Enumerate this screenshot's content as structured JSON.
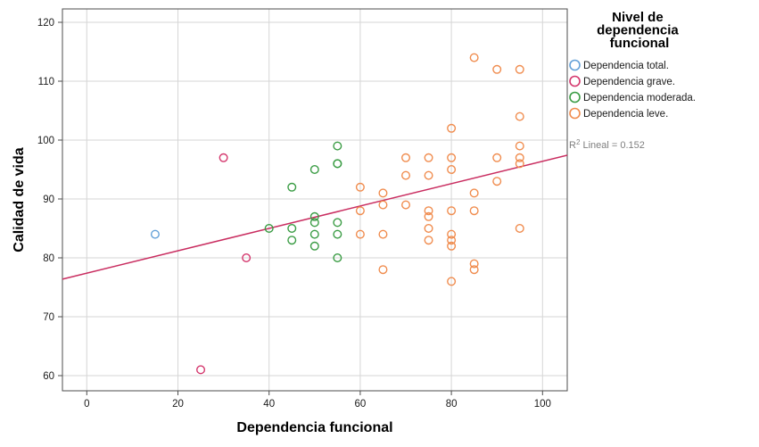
{
  "chart_data": {
    "type": "scatter",
    "xlabel": "Dependencia funcional",
    "ylabel": "Calidad de vida",
    "x_ticks": [
      0,
      20,
      40,
      60,
      80,
      100
    ],
    "y_ticks": [
      60,
      70,
      80,
      90,
      100,
      110,
      120
    ],
    "xlim": [
      -5.34,
      105.42
    ],
    "ylim": [
      57.4,
      122.3
    ],
    "grid": true,
    "legend_position": "right",
    "legend_title": "Nivel de dependencia funcional",
    "legend_title_lines": [
      "Nivel de",
      "dependencia",
      "funcional"
    ],
    "series": [
      {
        "label": "Dependencia total.",
        "color": "#64a1d8",
        "points": [
          [
            15,
            84
          ]
        ]
      },
      {
        "label": "Dependencia grave.",
        "color": "#d4376d",
        "points": [
          [
            25,
            61
          ],
          [
            30,
            97
          ],
          [
            35,
            80
          ]
        ]
      },
      {
        "label": "Dependencia moderada.",
        "color": "#3a9c44",
        "points": [
          [
            40,
            85
          ],
          [
            45,
            83
          ],
          [
            45,
            85
          ],
          [
            45,
            92
          ],
          [
            50,
            82
          ],
          [
            50,
            84
          ],
          [
            50,
            86
          ],
          [
            50,
            87
          ],
          [
            50,
            95
          ],
          [
            55,
            80
          ],
          [
            55,
            84
          ],
          [
            55,
            86
          ],
          [
            55,
            96
          ],
          [
            55,
            96
          ],
          [
            55,
            99
          ]
        ]
      },
      {
        "label": "Dependencia leve.",
        "color": "#f08c4e",
        "points": [
          [
            60,
            84
          ],
          [
            60,
            88
          ],
          [
            60,
            92
          ],
          [
            65,
            78
          ],
          [
            65,
            84
          ],
          [
            65,
            89
          ],
          [
            65,
            91
          ],
          [
            70,
            89
          ],
          [
            70,
            94
          ],
          [
            70,
            97
          ],
          [
            75,
            83
          ],
          [
            75,
            85
          ],
          [
            75,
            87
          ],
          [
            75,
            88
          ],
          [
            75,
            94
          ],
          [
            75,
            97
          ],
          [
            80,
            76
          ],
          [
            80,
            82
          ],
          [
            80,
            83
          ],
          [
            80,
            84
          ],
          [
            80,
            88
          ],
          [
            80,
            95
          ],
          [
            80,
            97
          ],
          [
            80,
            102
          ],
          [
            85,
            78
          ],
          [
            85,
            79
          ],
          [
            85,
            88
          ],
          [
            85,
            91
          ],
          [
            85,
            114
          ],
          [
            90,
            93
          ],
          [
            90,
            97
          ],
          [
            90,
            112
          ],
          [
            95,
            85
          ],
          [
            95,
            96
          ],
          [
            95,
            97
          ],
          [
            95,
            99
          ],
          [
            95,
            104
          ],
          [
            95,
            112
          ]
        ]
      }
    ],
    "fit_line": {
      "slope": 0.19,
      "intercept": 77.4,
      "color": "#c92d60",
      "r2": 0.152,
      "annotation": {
        "base": "R",
        "sup": "2",
        "rest": " Lineal = 0.152"
      }
    }
  }
}
